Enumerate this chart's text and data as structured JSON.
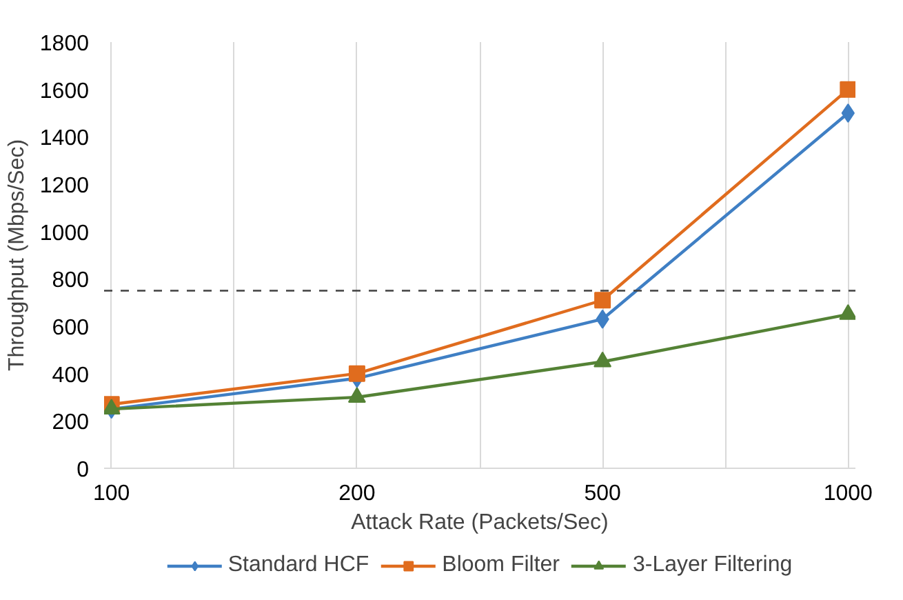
{
  "chart_data": {
    "type": "line",
    "xlabel": "Attack Rate (Packets/Sec)",
    "ylabel": "Throughput (Mbps/Sec)",
    "categories": [
      "100",
      "200",
      "500",
      "1000"
    ],
    "series": [
      {
        "name": "Standard HCF",
        "color": "#3f7fc4",
        "marker": "diamond",
        "values": [
          250,
          380,
          630,
          1500
        ]
      },
      {
        "name": "Bloom Filter",
        "color": "#e06c1e",
        "marker": "square",
        "values": [
          270,
          400,
          710,
          1600
        ]
      },
      {
        "name": "3-Layer Filtering",
        "color": "#548235",
        "marker": "triangle",
        "values": [
          250,
          300,
          450,
          650
        ]
      }
    ],
    "ylim": [
      0,
      1800
    ],
    "yticks": [
      0,
      200,
      400,
      600,
      800,
      1000,
      1200,
      1400,
      1600,
      1800
    ],
    "ref_lines": [
      {
        "axis": "y",
        "value": 750,
        "color": "#404040",
        "line_style": "dashed"
      }
    ],
    "grid": "x",
    "legend": "bottom",
    "line_style": "solid"
  }
}
